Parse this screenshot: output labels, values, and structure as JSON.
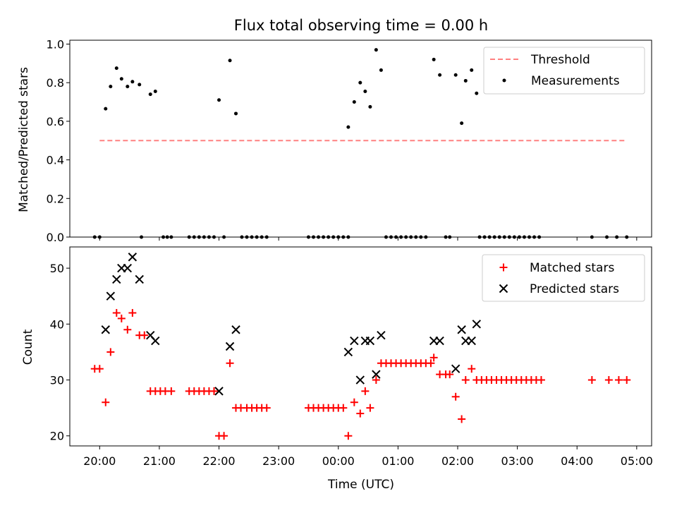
{
  "chart_data": [
    {
      "type": "scatter",
      "title": "Flux total observing time = 0.00 h",
      "xlabel": "",
      "ylabel": "Matched/Predicted stars",
      "xlim": [
        "19:30",
        "05:15"
      ],
      "ylim": [
        0,
        1.02
      ],
      "y_ticks": [
        0.0,
        0.2,
        0.4,
        0.6,
        0.8,
        1.0
      ],
      "y_tick_labels": [
        "0.0",
        "0.2",
        "0.4",
        "0.6",
        "0.8",
        "1.0"
      ],
      "legend_position": "top-right",
      "threshold": {
        "name": "Threshold",
        "color": "#ff8080",
        "style": "dashed",
        "y": 0.5,
        "x": [
          "20:00",
          "04:50"
        ]
      },
      "measurements": {
        "name": "Measurements",
        "color": "#000000",
        "points": [
          [
            "19:55",
            0.0
          ],
          [
            "20:00",
            0.0
          ],
          [
            "20:06",
            0.665
          ],
          [
            "20:11",
            0.78
          ],
          [
            "20:17",
            0.875
          ],
          [
            "20:22",
            0.82
          ],
          [
            "20:28",
            0.78
          ],
          [
            "20:33",
            0.805
          ],
          [
            "20:40",
            0.79
          ],
          [
            "20:42",
            0.0
          ],
          [
            "20:51",
            0.74
          ],
          [
            "20:56",
            0.755
          ],
          [
            "21:04",
            0.0
          ],
          [
            "21:08",
            0.0
          ],
          [
            "21:12",
            0.0
          ],
          [
            "21:30",
            0.0
          ],
          [
            "21:35",
            0.0
          ],
          [
            "21:40",
            0.0
          ],
          [
            "21:45",
            0.0
          ],
          [
            "21:50",
            0.0
          ],
          [
            "21:55",
            0.0
          ],
          [
            "22:00",
            0.71
          ],
          [
            "22:05",
            0.0
          ],
          [
            "22:11",
            0.915
          ],
          [
            "22:17",
            0.64
          ],
          [
            "22:23",
            0.0
          ],
          [
            "22:28",
            0.0
          ],
          [
            "22:33",
            0.0
          ],
          [
            "22:38",
            0.0
          ],
          [
            "22:43",
            0.0
          ],
          [
            "22:48",
            0.0
          ],
          [
            "23:30",
            0.0
          ],
          [
            "23:35",
            0.0
          ],
          [
            "23:40",
            0.0
          ],
          [
            "23:45",
            0.0
          ],
          [
            "23:50",
            0.0
          ],
          [
            "23:55",
            0.0
          ],
          [
            "00:00",
            0.0
          ],
          [
            "00:05",
            0.0
          ],
          [
            "00:10",
            0.0
          ],
          [
            "00:10",
            0.57
          ],
          [
            "00:16",
            0.7
          ],
          [
            "00:22",
            0.8
          ],
          [
            "00:27",
            0.755
          ],
          [
            "00:32",
            0.675
          ],
          [
            "00:38",
            0.97
          ],
          [
            "00:43",
            0.865
          ],
          [
            "00:48",
            0.0
          ],
          [
            "00:53",
            0.0
          ],
          [
            "00:58",
            0.0
          ],
          [
            "01:03",
            0.0
          ],
          [
            "01:08",
            0.0
          ],
          [
            "01:13",
            0.0
          ],
          [
            "01:18",
            0.0
          ],
          [
            "01:23",
            0.0
          ],
          [
            "01:28",
            0.0
          ],
          [
            "01:36",
            0.92
          ],
          [
            "01:42",
            0.84
          ],
          [
            "01:48",
            0.0
          ],
          [
            "01:52",
            0.0
          ],
          [
            "01:58",
            0.84
          ],
          [
            "02:04",
            0.59
          ],
          [
            "02:08",
            0.81
          ],
          [
            "02:14",
            0.865
          ],
          [
            "02:19",
            0.745
          ],
          [
            "02:22",
            0.0
          ],
          [
            "02:27",
            0.0
          ],
          [
            "02:32",
            0.0
          ],
          [
            "02:37",
            0.0
          ],
          [
            "02:42",
            0.0
          ],
          [
            "02:47",
            0.0
          ],
          [
            "02:52",
            0.0
          ],
          [
            "02:57",
            0.0
          ],
          [
            "03:02",
            0.0
          ],
          [
            "03:07",
            0.0
          ],
          [
            "03:12",
            0.0
          ],
          [
            "03:17",
            0.0
          ],
          [
            "03:22",
            0.0
          ],
          [
            "04:15",
            0.0
          ],
          [
            "04:30",
            0.0
          ],
          [
            "04:40",
            0.0
          ],
          [
            "04:50",
            0.0
          ]
        ]
      }
    },
    {
      "type": "scatter",
      "title": "",
      "xlabel": "Time (UTC)",
      "ylabel": "Count",
      "xlim": [
        "19:30",
        "05:15"
      ],
      "ylim": [
        18.2,
        53.8
      ],
      "y_ticks": [
        20,
        30,
        40,
        50
      ],
      "y_tick_labels": [
        "20",
        "30",
        "40",
        "50"
      ],
      "x_ticks": [
        "20:00",
        "21:00",
        "22:00",
        "23:00",
        "00:00",
        "01:00",
        "02:00",
        "03:00",
        "04:00",
        "05:00"
      ],
      "x_tick_labels": [
        "20:00",
        "21:00",
        "22:00",
        "23:00",
        "00:00",
        "01:00",
        "02:00",
        "03:00",
        "04:00",
        "05:00"
      ],
      "legend_position": "top-right",
      "series": [
        {
          "name": "Matched stars",
          "marker": "plus",
          "color": "#ff0000",
          "points": [
            [
              "19:55",
              32
            ],
            [
              "20:00",
              32
            ],
            [
              "20:06",
              26
            ],
            [
              "20:11",
              35
            ],
            [
              "20:17",
              42
            ],
            [
              "20:22",
              41
            ],
            [
              "20:28",
              39
            ],
            [
              "20:33",
              42
            ],
            [
              "20:40",
              38
            ],
            [
              "20:45",
              38
            ],
            [
              "20:51",
              28
            ],
            [
              "20:56",
              28
            ],
            [
              "21:01",
              28
            ],
            [
              "21:06",
              28
            ],
            [
              "21:12",
              28
            ],
            [
              "21:30",
              28
            ],
            [
              "21:35",
              28
            ],
            [
              "21:40",
              28
            ],
            [
              "21:45",
              28
            ],
            [
              "21:50",
              28
            ],
            [
              "21:55",
              28
            ],
            [
              "22:00",
              20
            ],
            [
              "22:05",
              20
            ],
            [
              "22:11",
              33
            ],
            [
              "22:17",
              25
            ],
            [
              "22:22",
              25
            ],
            [
              "22:28",
              25
            ],
            [
              "22:33",
              25
            ],
            [
              "22:38",
              25
            ],
            [
              "22:43",
              25
            ],
            [
              "22:48",
              25
            ],
            [
              "23:30",
              25
            ],
            [
              "23:35",
              25
            ],
            [
              "23:40",
              25
            ],
            [
              "23:45",
              25
            ],
            [
              "23:50",
              25
            ],
            [
              "23:55",
              25
            ],
            [
              "00:00",
              25
            ],
            [
              "00:05",
              25
            ],
            [
              "00:10",
              20
            ],
            [
              "00:16",
              26
            ],
            [
              "00:22",
              24
            ],
            [
              "00:27",
              28
            ],
            [
              "00:32",
              25
            ],
            [
              "00:38",
              30
            ],
            [
              "00:43",
              33
            ],
            [
              "00:48",
              33
            ],
            [
              "00:53",
              33
            ],
            [
              "00:58",
              33
            ],
            [
              "01:03",
              33
            ],
            [
              "01:08",
              33
            ],
            [
              "01:13",
              33
            ],
            [
              "01:18",
              33
            ],
            [
              "01:23",
              33
            ],
            [
              "01:28",
              33
            ],
            [
              "01:33",
              33
            ],
            [
              "01:36",
              34
            ],
            [
              "01:42",
              31
            ],
            [
              "01:48",
              31
            ],
            [
              "01:52",
              31
            ],
            [
              "01:58",
              27
            ],
            [
              "02:04",
              23
            ],
            [
              "02:08",
              30
            ],
            [
              "02:14",
              32
            ],
            [
              "02:19",
              30
            ],
            [
              "02:24",
              30
            ],
            [
              "02:29",
              30
            ],
            [
              "02:34",
              30
            ],
            [
              "02:39",
              30
            ],
            [
              "02:44",
              30
            ],
            [
              "02:49",
              30
            ],
            [
              "02:54",
              30
            ],
            [
              "02:59",
              30
            ],
            [
              "03:04",
              30
            ],
            [
              "03:09",
              30
            ],
            [
              "03:14",
              30
            ],
            [
              "03:19",
              30
            ],
            [
              "03:24",
              30
            ],
            [
              "04:15",
              30
            ],
            [
              "04:32",
              30
            ],
            [
              "04:42",
              30
            ],
            [
              "04:50",
              30
            ]
          ]
        },
        {
          "name": "Predicted stars",
          "marker": "x",
          "color": "#000000",
          "points": [
            [
              "20:06",
              39
            ],
            [
              "20:11",
              45
            ],
            [
              "20:17",
              48
            ],
            [
              "20:22",
              50
            ],
            [
              "20:28",
              50
            ],
            [
              "20:33",
              52
            ],
            [
              "20:40",
              48
            ],
            [
              "20:51",
              38
            ],
            [
              "20:56",
              37
            ],
            [
              "22:00",
              28
            ],
            [
              "22:11",
              36
            ],
            [
              "22:17",
              39
            ],
            [
              "00:10",
              35
            ],
            [
              "00:16",
              37
            ],
            [
              "00:22",
              30
            ],
            [
              "00:27",
              37
            ],
            [
              "00:32",
              37
            ],
            [
              "00:38",
              31
            ],
            [
              "00:43",
              38
            ],
            [
              "01:36",
              37
            ],
            [
              "01:42",
              37
            ],
            [
              "01:58",
              32
            ],
            [
              "02:04",
              39
            ],
            [
              "02:08",
              37
            ],
            [
              "02:14",
              37
            ],
            [
              "02:19",
              40
            ]
          ]
        }
      ]
    }
  ]
}
